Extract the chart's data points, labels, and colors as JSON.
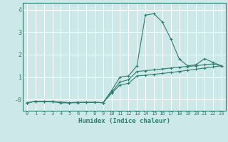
{
  "title": "",
  "xlabel": "Humidex (Indice chaleur)",
  "bg_color": "#cce8e8",
  "grid_color": "#ffffff",
  "line_color": "#2e7d70",
  "x_values": [
    0,
    1,
    2,
    3,
    4,
    5,
    6,
    7,
    8,
    9,
    10,
    11,
    12,
    13,
    14,
    15,
    16,
    17,
    18,
    19,
    20,
    21,
    22,
    23
  ],
  "series1": [
    -0.15,
    -0.08,
    -0.1,
    -0.1,
    -0.15,
    -0.15,
    -0.14,
    -0.13,
    -0.13,
    -0.14,
    0.4,
    1.0,
    1.05,
    1.5,
    3.75,
    3.82,
    3.45,
    2.7,
    1.8,
    1.5,
    1.55,
    1.82,
    1.65,
    1.5
  ],
  "series2": [
    -0.15,
    -0.08,
    -0.09,
    -0.09,
    -0.12,
    -0.14,
    -0.13,
    -0.13,
    -0.13,
    -0.14,
    0.32,
    0.78,
    0.88,
    1.25,
    1.28,
    1.32,
    1.36,
    1.4,
    1.44,
    1.47,
    1.5,
    1.55,
    1.58,
    1.5
  ],
  "series3": [
    -0.15,
    -0.08,
    -0.09,
    -0.09,
    -0.12,
    -0.14,
    -0.13,
    -0.13,
    -0.13,
    -0.14,
    0.28,
    0.65,
    0.72,
    1.05,
    1.08,
    1.12,
    1.16,
    1.2,
    1.25,
    1.3,
    1.35,
    1.4,
    1.45,
    1.5
  ],
  "ylim": [
    -0.5,
    4.3
  ],
  "xlim": [
    -0.5,
    23.5
  ],
  "yticks": [
    0,
    1,
    2,
    3,
    4
  ],
  "ytick_labels": [
    "-0",
    "1",
    "2",
    "3",
    "4"
  ],
  "xticks": [
    0,
    1,
    2,
    3,
    4,
    5,
    6,
    7,
    8,
    9,
    10,
    11,
    12,
    13,
    14,
    15,
    16,
    17,
    18,
    19,
    20,
    21,
    22,
    23
  ]
}
